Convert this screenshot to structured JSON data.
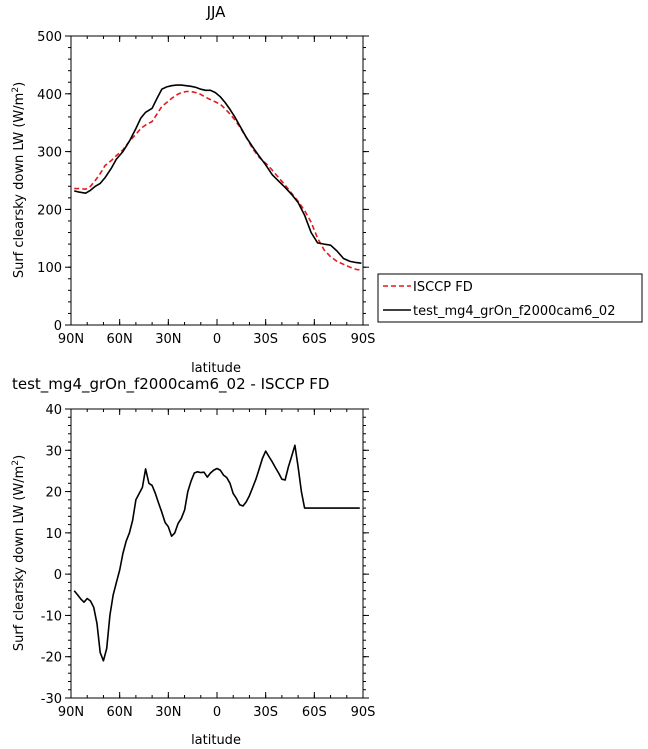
{
  "chart_data": [
    {
      "type": "line",
      "title": "JJA",
      "xlabel": "latitude",
      "ylabel": "Surf clearsky down LW (W/m²)",
      "ylabel_parts": {
        "main": "Surf clearsky down LW (W/m",
        "sup": "2",
        "close": ")"
      },
      "xlim": [
        90,
        -90
      ],
      "ylim": [
        0,
        500
      ],
      "xticks": [
        90,
        60,
        30,
        0,
        -30,
        -60,
        -90
      ],
      "xticklabels": [
        "90N",
        "60N",
        "30N",
        "0",
        "30S",
        "60S",
        "90S"
      ],
      "yticks": [
        0,
        100,
        200,
        300,
        400,
        500
      ],
      "yticklabels": [
        "0",
        "100",
        "200",
        "300",
        "400",
        "500"
      ],
      "legend_position": "right",
      "series": [
        {
          "name": "ISCCP FD",
          "color": "#e41a1c",
          "dash": "dashed",
          "x": [
            88,
            85,
            81,
            78,
            75,
            72,
            69,
            65,
            62,
            58,
            54,
            50,
            47,
            44,
            40,
            37,
            34,
            31,
            28,
            25,
            22,
            19,
            16,
            13,
            10,
            7,
            4,
            1,
            -2,
            -5,
            -8,
            -11,
            -14,
            -18,
            -22,
            -26,
            -30,
            -34,
            -38,
            -42,
            -46,
            -50,
            -54,
            -58,
            -62,
            -66,
            -70,
            -74,
            -78,
            -82,
            -86,
            -89
          ],
          "y": [
            236,
            236,
            235,
            240,
            250,
            262,
            276,
            285,
            293,
            303,
            318,
            330,
            340,
            346,
            352,
            365,
            378,
            385,
            392,
            398,
            402,
            404,
            404,
            402,
            399,
            394,
            390,
            386,
            382,
            374,
            365,
            355,
            343,
            325,
            305,
            290,
            280,
            268,
            255,
            242,
            228,
            214,
            198,
            178,
            150,
            130,
            118,
            110,
            105,
            100,
            96,
            95
          ]
        },
        {
          "name": "test_mg4_grOn_f2000cam6_02",
          "color": "#000000",
          "dash": "solid",
          "x": [
            88,
            85,
            81,
            78,
            75,
            72,
            69,
            65,
            62,
            58,
            54,
            50,
            47,
            44,
            40,
            37,
            34,
            31,
            28,
            25,
            22,
            19,
            16,
            13,
            10,
            7,
            4,
            1,
            -2,
            -5,
            -8,
            -11,
            -14,
            -18,
            -22,
            -26,
            -30,
            -34,
            -38,
            -42,
            -46,
            -50,
            -54,
            -58,
            -62,
            -66,
            -70,
            -74,
            -78,
            -82,
            -86,
            -89
          ],
          "y": [
            232,
            230,
            228,
            233,
            240,
            245,
            255,
            272,
            287,
            300,
            318,
            340,
            358,
            368,
            375,
            392,
            408,
            412,
            414,
            415,
            415,
            414,
            413,
            411,
            408,
            406,
            406,
            402,
            395,
            385,
            373,
            360,
            345,
            325,
            308,
            292,
            277,
            260,
            249,
            238,
            226,
            212,
            190,
            160,
            142,
            140,
            138,
            128,
            115,
            110,
            108,
            107
          ]
        }
      ]
    },
    {
      "type": "line",
      "title": "test_mg4_grOn_f2000cam6_02 - ISCCP FD",
      "xlabel": "latitude",
      "ylabel": "Surf clearsky down LW (W/m²)",
      "ylabel_parts": {
        "main": "Surf clearsky down LW (W/m",
        "sup": "2",
        "close": ")"
      },
      "xlim": [
        90,
        -90
      ],
      "ylim": [
        -30,
        40
      ],
      "xticks": [
        90,
        60,
        30,
        0,
        -30,
        -60,
        -90
      ],
      "xticklabels": [
        "90N",
        "60N",
        "30N",
        "0",
        "30S",
        "60S",
        "90S"
      ],
      "yticks": [
        -30,
        -20,
        -10,
        0,
        10,
        20,
        30,
        40
      ],
      "yticklabels": [
        "-30",
        "-20",
        "-10",
        "0",
        "10",
        "20",
        "30",
        "40"
      ],
      "series": [
        {
          "name": "",
          "color": "#000000",
          "dash": "solid",
          "x": [
            88,
            86,
            84,
            82,
            80,
            78,
            76,
            74,
            72,
            70,
            68,
            66,
            64,
            62,
            60,
            58,
            56,
            54,
            52,
            50,
            48,
            46,
            44,
            42,
            40,
            38,
            36,
            34,
            32,
            30,
            28,
            26,
            24,
            22,
            20,
            18,
            16,
            14,
            12,
            10,
            8,
            6,
            4,
            2,
            0,
            -2,
            -4,
            -6,
            -8,
            -10,
            -12,
            -14,
            -16,
            -18,
            -20,
            -22,
            -24,
            -26,
            -28,
            -30,
            -32,
            -34,
            -36,
            -38,
            -40,
            -42,
            -44,
            -46,
            -48,
            -50,
            -52,
            -54,
            -56,
            -58,
            -60,
            -62,
            -64,
            -66,
            -68,
            -70,
            -72,
            -74,
            -76,
            -78,
            -80,
            -82,
            -84,
            -86,
            -88
          ],
          "y": [
            -4,
            -5,
            -6,
            -6.8,
            -5.9,
            -6.5,
            -8,
            -12,
            -19,
            -21,
            -18,
            -10,
            -5,
            -2,
            1,
            5,
            8,
            10,
            13,
            18,
            19.5,
            21,
            25.5,
            22,
            21.5,
            19.5,
            17.2,
            15,
            12.5,
            11.5,
            9.2,
            10,
            12.3,
            13.5,
            15.5,
            20,
            22.5,
            24.5,
            24.8,
            24.6,
            24.7,
            23.5,
            24.5,
            25.2,
            25.6,
            25.2,
            24,
            23.4,
            22,
            19.5,
            18.3,
            16.8,
            16.5,
            17.5,
            19,
            21,
            23,
            25.5,
            28,
            29.8,
            28.5,
            27.2,
            25.8,
            24.5,
            23,
            22.8,
            26,
            28.5,
            31.2,
            26,
            20,
            16,
            16,
            16,
            16,
            16,
            16,
            16,
            16,
            16,
            16,
            16,
            16,
            16,
            16,
            16,
            16,
            16,
            16
          ]
        }
      ]
    }
  ]
}
